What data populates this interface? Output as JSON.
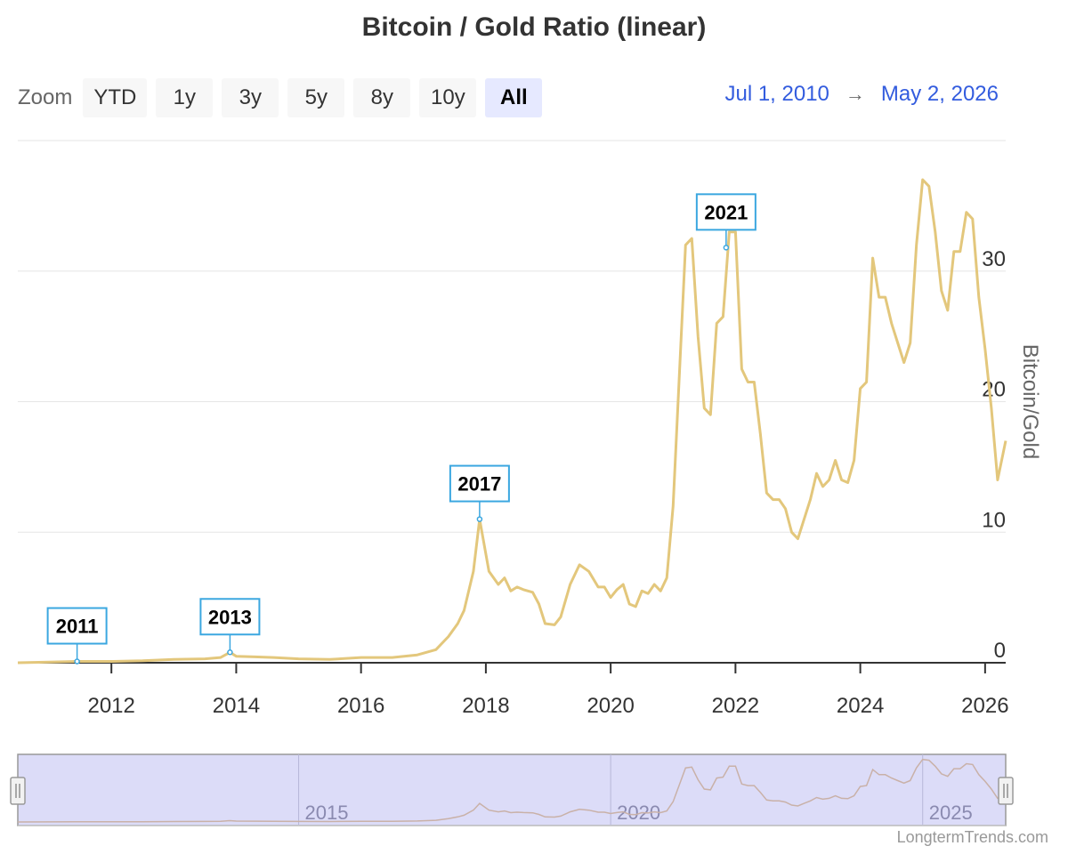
{
  "title": "Bitcoin / Gold Ratio (linear)",
  "zoom": {
    "label": "Zoom",
    "buttons": [
      "YTD",
      "1y",
      "3y",
      "5y",
      "8y",
      "10y",
      "All"
    ],
    "active": "All"
  },
  "range": {
    "from": "Jul 1, 2010",
    "arrow": "→",
    "to": "May 2, 2026"
  },
  "credit": "LongtermTrends.com",
  "colors": {
    "series": "#e3c77c",
    "navigator_fill": "#dcdcf8",
    "navigator_line": "#c9b1a8",
    "flag_border": "#3ba7e0",
    "grid": "#e6e6e6"
  },
  "chart_data": {
    "type": "line",
    "ylabel": "Bitcoin/Gold",
    "ylim": [
      0,
      40
    ],
    "xlim": [
      2010.5,
      2026.33
    ],
    "y_ticks": [
      0,
      10,
      20,
      30
    ],
    "x_ticks": [
      2012,
      2014,
      2016,
      2018,
      2020,
      2022,
      2024,
      2026
    ],
    "grid": true,
    "series": [
      {
        "x": [
          2010.5,
          2011.0,
          2011.45,
          2012.0,
          2012.5,
          2013.0,
          2013.5,
          2013.75,
          2013.9,
          2014.0,
          2014.3,
          2014.6,
          2015.0,
          2015.5,
          2016.0,
          2016.5,
          2016.9,
          2017.2,
          2017.4,
          2017.55,
          2017.65,
          2017.8,
          2017.9,
          2018.05,
          2018.2,
          2018.3,
          2018.4,
          2018.5,
          2018.6,
          2018.75,
          2018.85,
          2018.95,
          2019.1,
          2019.2,
          2019.35,
          2019.5,
          2019.65,
          2019.8,
          2019.9,
          2020.0,
          2020.1,
          2020.2,
          2020.3,
          2020.4,
          2020.5,
          2020.6,
          2020.7,
          2020.8,
          2020.9,
          2021.0,
          2021.1,
          2021.2,
          2021.3,
          2021.4,
          2021.5,
          2021.6,
          2021.7,
          2021.8,
          2021.9,
          2022.0,
          2022.1,
          2022.2,
          2022.3,
          2022.4,
          2022.5,
          2022.6,
          2022.7,
          2022.8,
          2022.9,
          2023.0,
          2023.1,
          2023.2,
          2023.3,
          2023.4,
          2023.5,
          2023.6,
          2023.7,
          2023.8,
          2023.9,
          2024.0,
          2024.1,
          2024.2,
          2024.3,
          2024.4,
          2024.5,
          2024.6,
          2024.7,
          2024.8,
          2024.9,
          2025.0,
          2025.1,
          2025.2,
          2025.3,
          2025.4,
          2025.5,
          2025.6,
          2025.7,
          2025.8,
          2025.9,
          2026.0,
          2026.1,
          2026.2,
          2026.33
        ],
        "y": [
          0.0,
          0.05,
          0.1,
          0.1,
          0.15,
          0.25,
          0.3,
          0.4,
          0.8,
          0.5,
          0.45,
          0.4,
          0.3,
          0.25,
          0.4,
          0.4,
          0.6,
          1.0,
          2.0,
          3.0,
          4.0,
          7.0,
          11.0,
          7.0,
          6.0,
          6.5,
          5.5,
          5.8,
          5.6,
          5.4,
          4.5,
          3.0,
          2.9,
          3.5,
          6.0,
          7.5,
          7.0,
          5.8,
          5.8,
          5.0,
          5.6,
          6.0,
          4.5,
          4.3,
          5.5,
          5.3,
          6.0,
          5.5,
          6.5,
          12.0,
          22.0,
          32.0,
          32.5,
          25.0,
          19.5,
          19.0,
          26.0,
          26.5,
          33.0,
          33.0,
          22.5,
          21.5,
          21.5,
          17.5,
          13.0,
          12.5,
          12.5,
          11.8,
          10.0,
          9.5,
          11.0,
          12.5,
          14.5,
          13.5,
          14.0,
          15.5,
          14.0,
          13.8,
          15.5,
          21.0,
          21.5,
          31.0,
          28.0,
          28.0,
          26.0,
          24.5,
          23.0,
          24.5,
          32.0,
          37.0,
          36.5,
          33.0,
          28.5,
          27.0,
          31.5,
          31.5,
          34.5,
          34.0,
          28.0,
          24.0,
          19.5,
          14.0,
          17.0
        ]
      }
    ],
    "flags": [
      {
        "label": "2011",
        "x": 2011.45,
        "y": 0.1
      },
      {
        "label": "2013",
        "x": 2013.9,
        "y": 0.8
      },
      {
        "label": "2017",
        "x": 2017.9,
        "y": 11.0
      },
      {
        "label": "2021",
        "x": 2021.85,
        "y": 31.8
      }
    ],
    "navigator": {
      "tick_labels": [
        "2015",
        "2020",
        "2025"
      ],
      "ticks": [
        2015,
        2020,
        2025
      ]
    }
  }
}
